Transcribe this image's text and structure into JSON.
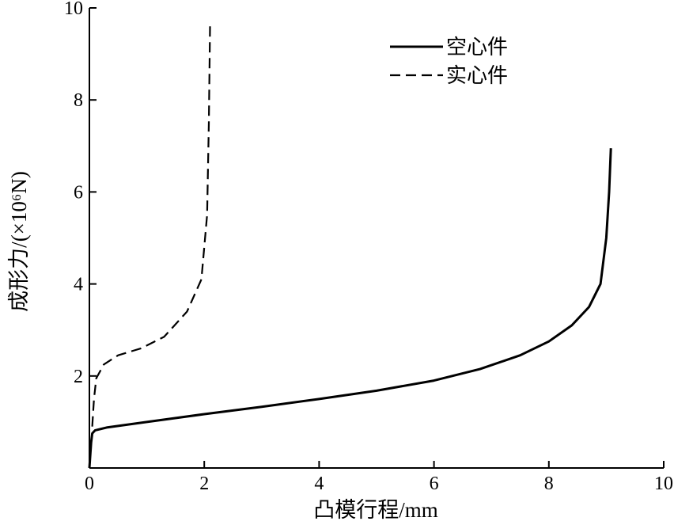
{
  "chart_data": {
    "type": "line",
    "xlabel": "凸模行程/mm",
    "ylabel": "成形力/(×10⁶N)",
    "xlim": [
      0,
      10
    ],
    "ylim": [
      0,
      10
    ],
    "xticks": [
      "0",
      "2",
      "4",
      "6",
      "8",
      "10"
    ],
    "yticks": [
      "2",
      "4",
      "6",
      "8",
      "10"
    ],
    "grid": false,
    "legend_position": "top-right",
    "series": [
      {
        "name": "空心件",
        "style": "solid",
        "color": "#000000",
        "x": [
          0.0,
          0.03,
          0.05,
          0.1,
          0.3,
          1,
          2,
          3,
          4,
          5,
          6,
          6.8,
          7.5,
          8.0,
          8.4,
          8.7,
          8.9,
          9.0,
          9.05,
          9.08
        ],
        "y": [
          0.0,
          0.55,
          0.75,
          0.82,
          0.88,
          1.0,
          1.17,
          1.33,
          1.5,
          1.68,
          1.9,
          2.15,
          2.45,
          2.75,
          3.1,
          3.5,
          4.0,
          5.0,
          6.0,
          6.95
        ]
      },
      {
        "name": "实心件",
        "style": "dashed",
        "color": "#000000",
        "x": [
          0.05,
          0.08,
          0.12,
          0.25,
          0.5,
          0.9,
          1.3,
          1.7,
          1.95,
          2.05,
          2.08,
          2.1
        ],
        "y": [
          0.9,
          1.5,
          1.95,
          2.25,
          2.45,
          2.6,
          2.85,
          3.4,
          4.1,
          5.5,
          7.5,
          9.6
        ]
      }
    ]
  }
}
